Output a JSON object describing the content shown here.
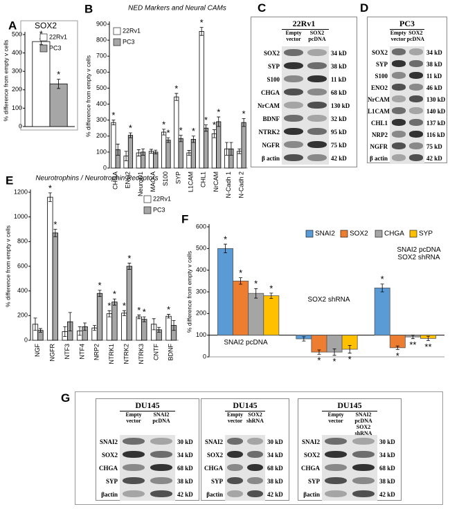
{
  "chart_data": [
    {
      "panel": "A",
      "type": "bar",
      "title": "SOX2",
      "y_label": "% difference from empty v cells",
      "categories": [
        null
      ],
      "series": [
        {
          "name": "22Rv1",
          "color": "#ffffff",
          "values": [
            462
          ],
          "errors": [
            15
          ],
          "significance": [
            "*"
          ]
        },
        {
          "name": "PC3",
          "color": "#a6a6a6",
          "values": [
            232
          ],
          "errors": [
            25
          ],
          "significance": [
            "*"
          ]
        }
      ],
      "ylim": [
        0,
        500
      ],
      "yticks": [
        0,
        100,
        200,
        300,
        400,
        500
      ],
      "legend": "upper right"
    },
    {
      "panel": "B",
      "type": "bar",
      "title": "NED Markers and Neural CAMs",
      "y_label": "% difference from empty v cells",
      "categories": [
        "CHGA",
        "ENO2",
        "NeuroD1",
        "MAO-A",
        "S100",
        "SYP",
        "L1CAM",
        "CHL1",
        "NrCAM",
        "N-Cadh 1",
        "N-Cadh 2"
      ],
      "series": [
        {
          "name": "22Rv1",
          "color": "#ffffff",
          "values": [
            285,
            75,
            95,
            105,
            225,
            445,
            95,
            855,
            215,
            120,
            105
          ],
          "errors": [
            15,
            30,
            20,
            12,
            18,
            22,
            15,
            25,
            25,
            40,
            15
          ],
          "significance": [
            "*",
            null,
            null,
            null,
            "*",
            "*",
            null,
            "*",
            "*",
            null,
            null
          ]
        },
        {
          "name": "PC3",
          "color": "#a6a6a6",
          "values": [
            115,
            205,
            100,
            100,
            175,
            185,
            180,
            250,
            290,
            120,
            285
          ],
          "errors": [
            35,
            15,
            20,
            12,
            15,
            20,
            20,
            20,
            30,
            40,
            25
          ],
          "significance": [
            null,
            "*",
            null,
            null,
            "*",
            "*",
            "*",
            "*",
            "*",
            null,
            "*"
          ]
        }
      ],
      "ylim": [
        0,
        900
      ],
      "yticks": [
        0,
        100,
        200,
        300,
        400,
        500,
        600,
        700,
        800,
        900
      ],
      "legend": "upper left"
    },
    {
      "panel": "E",
      "type": "bar",
      "title": "Neurotrophins / Neurotrophin Receptors",
      "y_label": "% difference from empty v cells",
      "categories": [
        "NGF",
        "NGFR",
        "NTF3",
        "NTF4",
        "NRP2",
        "NTRK1",
        "NTRK2",
        "NTRK3",
        "CNTF",
        "BDNF"
      ],
      "series": [
        {
          "name": "22Rv1",
          "color": "#ffffff",
          "values": [
            130,
            1160,
            70,
            75,
            100,
            215,
            220,
            190,
            130,
            195
          ],
          "errors": [
            50,
            35,
            40,
            35,
            20,
            25,
            20,
            15,
            45,
            15
          ],
          "significance": [
            null,
            "*",
            null,
            null,
            null,
            "*",
            "*",
            "*",
            null,
            "*"
          ]
        },
        {
          "name": "PC3",
          "color": "#a6a6a6",
          "values": [
            80,
            870,
            150,
            110,
            380,
            310,
            600,
            170,
            85,
            120
          ],
          "errors": [
            15,
            30,
            75,
            30,
            25,
            25,
            25,
            20,
            20,
            40
          ],
          "significance": [
            null,
            "*",
            null,
            null,
            "*",
            "*",
            "*",
            "*",
            null,
            null
          ]
        }
      ],
      "ylim": [
        0,
        1200
      ],
      "yticks": [
        0,
        200,
        400,
        600,
        800,
        1000,
        1200
      ],
      "legend": "upper right"
    },
    {
      "panel": "F",
      "type": "bar",
      "y_label": "% difference from empty v cells",
      "categories": [
        "SNAI2 pcDNA",
        "SOX2 shRNA",
        "SNAI2 pcDNA\nSOX2 shRNA"
      ],
      "baseline": 100,
      "series": [
        {
          "name": "SNAI2",
          "color": "#5b9bd5",
          "values": [
            500,
            83,
            318
          ],
          "errors": [
            20,
            10,
            18
          ],
          "significance": [
            "*",
            null,
            "*"
          ]
        },
        {
          "name": "SOX2",
          "color": "#ed7d31",
          "values": [
            350,
            22,
            42
          ],
          "errors": [
            15,
            10,
            8
          ],
          "significance": [
            "*",
            "*",
            "*"
          ]
        },
        {
          "name": "CHGA",
          "color": "#a5a5a5",
          "values": [
            293,
            22,
            92
          ],
          "errors": [
            22,
            15,
            8
          ],
          "significance": [
            "*",
            "*",
            "**"
          ]
        },
        {
          "name": "SYP",
          "color": "#ffc000",
          "values": [
            282,
            35,
            85
          ],
          "errors": [
            12,
            18,
            10
          ],
          "significance": [
            "*",
            "*",
            "**"
          ]
        }
      ],
      "ylim": [
        0,
        600
      ],
      "yticks": [
        0,
        100,
        200,
        300,
        400,
        500,
        600
      ],
      "legend": "upper right"
    }
  ],
  "blots": [
    {
      "panel": "C",
      "title": "22Rv1",
      "lanes": [
        "Empty vector",
        "SOX2 pcDNA"
      ],
      "rows": [
        {
          "protein": "SOX2",
          "size": "34 kD"
        },
        {
          "protein": "SYP",
          "size": "38 kD"
        },
        {
          "protein": "S100",
          "size": "11 kD"
        },
        {
          "protein": "CHGA",
          "size": "68 kD"
        },
        {
          "protein": "NrCAM",
          "size": "130 kD"
        },
        {
          "protein": "BDNF",
          "size": "32 kD"
        },
        {
          "protein": "NTRK2",
          "size": "95 kD"
        },
        {
          "protein": "NGFR",
          "size": "75 kD"
        },
        {
          "protein": "β actin",
          "size": "42 kD"
        }
      ]
    },
    {
      "panel": "D",
      "title": "PC3",
      "lanes": [
        "Empty vector",
        "SOX2 pcDNA"
      ],
      "rows": [
        {
          "protein": "SOX2",
          "size": "34 kD"
        },
        {
          "protein": "SYP",
          "size": "38 kD"
        },
        {
          "protein": "S100",
          "size": "11 kD"
        },
        {
          "protein": "ENO2",
          "size": "46 kD"
        },
        {
          "protein": "NrCAM",
          "size": "130 kD"
        },
        {
          "protein": "L1CAM",
          "size": "140 kD"
        },
        {
          "protein": "CHL1",
          "size": "137 kD"
        },
        {
          "protein": "NRP2",
          "size": "116 kD"
        },
        {
          "protein": "NGFR",
          "size": "75 kD"
        },
        {
          "protein": "β actin",
          "size": "42 kD"
        }
      ]
    }
  ],
  "panel_g": {
    "panel": "G",
    "blots": [
      {
        "title": "DU145",
        "lanes": [
          "Empty vector",
          "SNAI2 pcDNA"
        ],
        "rows": [
          {
            "protein": "SNAI2",
            "size": "30 kD"
          },
          {
            "protein": "SOX2",
            "size": "34 kD"
          },
          {
            "protein": "CHGA",
            "size": "68 kD"
          },
          {
            "protein": "SYP",
            "size": "38 kD"
          },
          {
            "protein": "βactin",
            "size": "42 kD"
          }
        ]
      },
      {
        "title": "DU145",
        "lanes": [
          "Empty vector",
          "SOX2 shRNA"
        ],
        "rows": [
          {
            "protein": "SNAI2",
            "size": "30 kD"
          },
          {
            "protein": "SOX2",
            "size": "34 kD"
          },
          {
            "protein": "CHGA",
            "size": "68 kD"
          },
          {
            "protein": "SYP",
            "size": "38 kD"
          },
          {
            "protein": "βactin",
            "size": "42 kD"
          }
        ]
      },
      {
        "title": "DU145",
        "lanes": [
          "Empty vector",
          "SNAI2 pcDNA SOX2 shRNA"
        ],
        "rows": [
          {
            "protein": "SNAI2",
            "size": "30 kD"
          },
          {
            "protein": "SOX2",
            "size": "34 kD"
          },
          {
            "protein": "CHGA",
            "size": "68 kD"
          },
          {
            "protein": "SYP",
            "size": "38 kD"
          },
          {
            "protein": "βactin",
            "size": "42 kD"
          }
        ]
      }
    ]
  }
}
